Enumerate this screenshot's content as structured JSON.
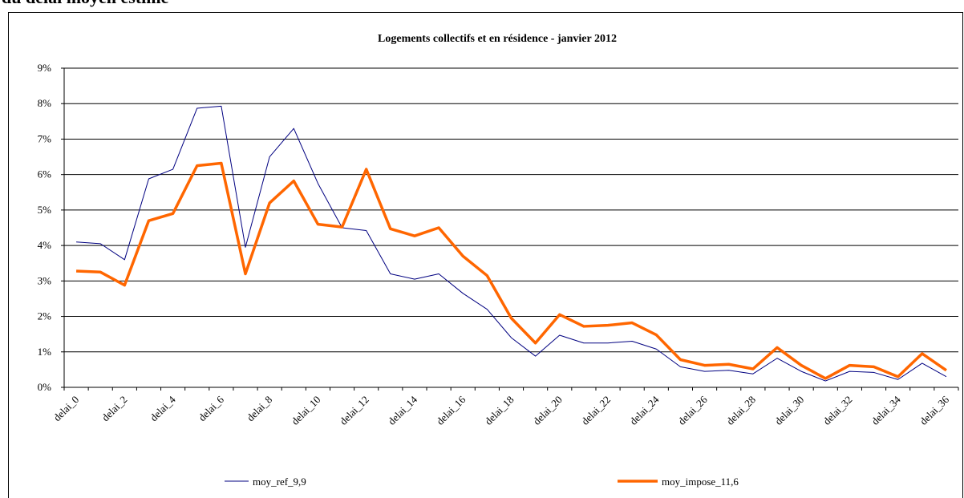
{
  "header": {
    "title": "du délai moyen estimé"
  },
  "chart_data": {
    "type": "line",
    "title": "Logements collectifs et en résidence - janvier 2012",
    "categories": [
      "delai_0",
      null,
      "delai_2",
      null,
      "delai_4",
      null,
      "delai_6",
      null,
      "delai_8",
      null,
      "delai_10",
      null,
      "delai_12",
      null,
      "delai_14",
      null,
      "delai_16",
      null,
      "delai_18",
      null,
      "delai_20",
      null,
      "delai_22",
      null,
      "delai_24",
      null,
      "delai_26",
      null,
      "delai_28",
      null,
      "delai_30",
      null,
      "delai_32",
      null,
      "delai_34",
      null,
      "delai_36"
    ],
    "series": [
      {
        "name": "moy_ref_9,9",
        "color": "#000080",
        "width": 1,
        "values": [
          4.1,
          4.05,
          3.6,
          5.88,
          6.15,
          7.87,
          7.93,
          3.95,
          6.5,
          7.3,
          5.75,
          4.5,
          4.42,
          3.2,
          3.05,
          3.2,
          2.65,
          2.2,
          1.4,
          0.88,
          1.47,
          1.25,
          1.25,
          1.3,
          1.08,
          0.58,
          0.45,
          0.48,
          0.38,
          0.82,
          0.45,
          0.18,
          0.45,
          0.42,
          0.22,
          0.68,
          0.3
        ]
      },
      {
        "name": "moy_impose_11,6",
        "color": "#ff6600",
        "width": 3.5,
        "values": [
          3.28,
          3.25,
          2.88,
          4.7,
          4.9,
          6.25,
          6.32,
          3.2,
          5.2,
          5.82,
          4.6,
          4.52,
          6.15,
          4.47,
          4.27,
          4.5,
          3.7,
          3.15,
          1.95,
          1.25,
          2.05,
          1.72,
          1.75,
          1.82,
          1.48,
          0.78,
          0.62,
          0.65,
          0.52,
          1.12,
          0.62,
          0.25,
          0.62,
          0.58,
          0.3,
          0.95,
          0.48
        ]
      }
    ],
    "ylim": [
      0,
      9
    ],
    "yticks": [
      {
        "value": 0,
        "label": "0%"
      },
      {
        "value": 1,
        "label": "1%"
      },
      {
        "value": 2,
        "label": "2%"
      },
      {
        "value": 3,
        "label": "3%"
      },
      {
        "value": 4,
        "label": "4%"
      },
      {
        "value": 5,
        "label": "5%"
      },
      {
        "value": 6,
        "label": "6%"
      },
      {
        "value": 7,
        "label": "7%"
      },
      {
        "value": 8,
        "label": "8%"
      },
      {
        "value": 9,
        "label": "9%"
      }
    ],
    "grid": true,
    "legend": "bottom"
  }
}
